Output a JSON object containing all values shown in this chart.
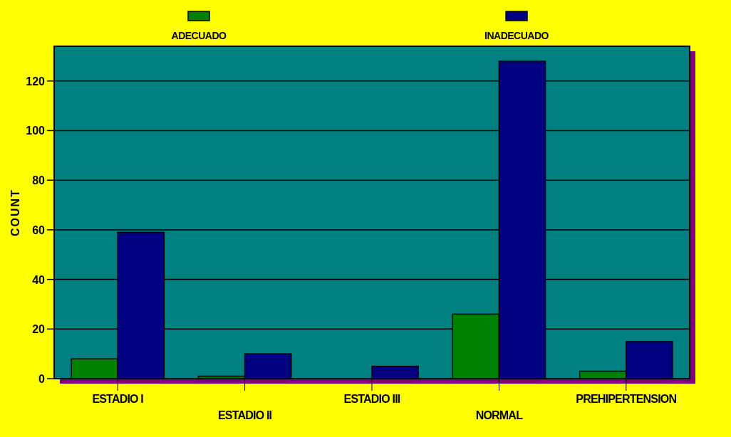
{
  "chart_data": {
    "type": "bar",
    "ylabel": "COUNT",
    "categories": [
      "ESTADIO I",
      "ESTADIO II",
      "ESTADIO III",
      "NORMAL",
      "PREHIPERTENSION"
    ],
    "series": [
      {
        "name": "ADECUADO",
        "color": "#008000",
        "values": [
          8,
          1,
          0,
          26,
          3
        ]
      },
      {
        "name": "INADECUADO",
        "color": "#000080",
        "values": [
          59,
          10,
          5,
          128,
          15
        ]
      }
    ],
    "ylim": [
      0,
      134
    ],
    "yticks": [
      0,
      20,
      40,
      60,
      80,
      100,
      120
    ],
    "grid": "y",
    "legend": "top"
  }
}
